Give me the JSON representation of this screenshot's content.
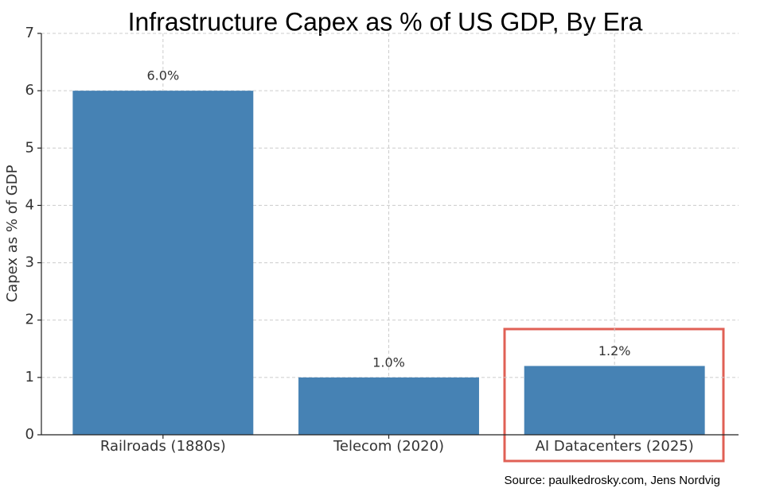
{
  "chart_data": {
    "type": "bar",
    "title": "Infrastructure Capex as % of US GDP, By Era",
    "y_label": "Capex as % of GDP",
    "categories": [
      "Railroads (1880s)",
      "Telecom (2020)",
      "AI Datacenters (2025)"
    ],
    "values": [
      6.0,
      1.0,
      1.2
    ],
    "value_labels": [
      "6.0%",
      "1.0%",
      "1.2%"
    ],
    "color": "#4682b4",
    "ylim": [
      0,
      7
    ],
    "yticks": [
      0,
      1,
      2,
      3,
      4,
      5,
      6,
      7
    ],
    "grid": true,
    "source": "Source: paulkedrosky.com, Jens Nordvig"
  }
}
